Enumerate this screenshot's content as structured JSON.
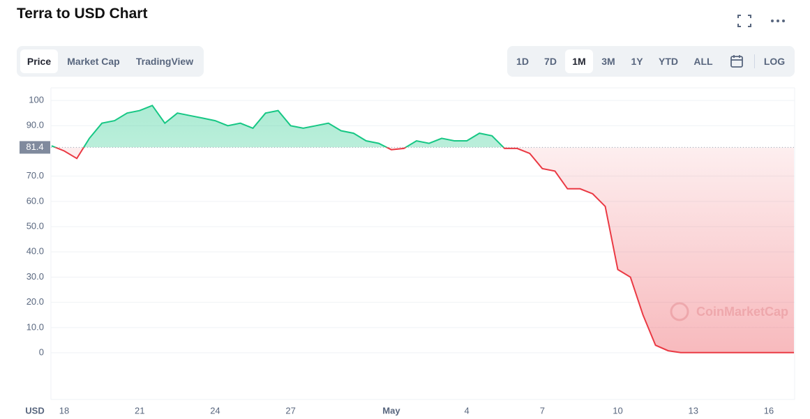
{
  "chart_data": {
    "type": "line",
    "title": "Terra to USD Chart",
    "categories": [
      null,
      "18",
      null,
      null,
      null,
      null,
      null,
      "21",
      null,
      null,
      null,
      null,
      null,
      "24",
      null,
      null,
      null,
      null,
      null,
      "27",
      null,
      null,
      null,
      null,
      null,
      null,
      null,
      "May",
      null,
      null,
      null,
      null,
      null,
      "4",
      null,
      null,
      null,
      null,
      null,
      "7",
      null,
      null,
      null,
      null,
      null,
      "10",
      null,
      null,
      null,
      null,
      null,
      "13",
      null,
      null,
      null,
      null,
      null,
      "16",
      null,
      null
    ],
    "series": [
      {
        "name": "Price",
        "color": "#16c784",
        "values": [
          82,
          80,
          77,
          85,
          91,
          92,
          95,
          96,
          98,
          91,
          95,
          94,
          93,
          92,
          90,
          91,
          89,
          95,
          96,
          90,
          89,
          90,
          91,
          88,
          87,
          84,
          83,
          80.5,
          81,
          84,
          83,
          85,
          84,
          84,
          87,
          86,
          81,
          81,
          79,
          73,
          72,
          65,
          65,
          63,
          58,
          33,
          30,
          15,
          3,
          0.8,
          0.1,
          0.1,
          0.1,
          0.1,
          0.1,
          0.1,
          0.1,
          0.1,
          0.1,
          0.1
        ]
      }
    ],
    "below_color": "#ea3943",
    "reference": 81.4,
    "ylim": [
      -18.5,
      105
    ],
    "yticks": [
      0,
      {
        "value": 10,
        "label": "10.0"
      },
      {
        "value": 20,
        "label": "20.0"
      },
      {
        "value": 30,
        "label": "30.0"
      },
      {
        "value": 40,
        "label": "40.0"
      },
      {
        "value": 50,
        "label": "50.0"
      },
      {
        "value": 60,
        "label": "60.0"
      },
      {
        "value": 70,
        "label": "70.0"
      },
      {
        "value": 90,
        "label": "90.0"
      },
      100
    ],
    "grid": true,
    "y_unit": "USD",
    "watermark": "CoinMarketCap"
  },
  "toolbar": {
    "tabs": [
      "Price",
      "Market Cap",
      "TradingView"
    ],
    "ranges": [
      "1D",
      "7D",
      "1M",
      "3M",
      "1Y",
      "YTD",
      "ALL"
    ],
    "scale": "LOG"
  }
}
